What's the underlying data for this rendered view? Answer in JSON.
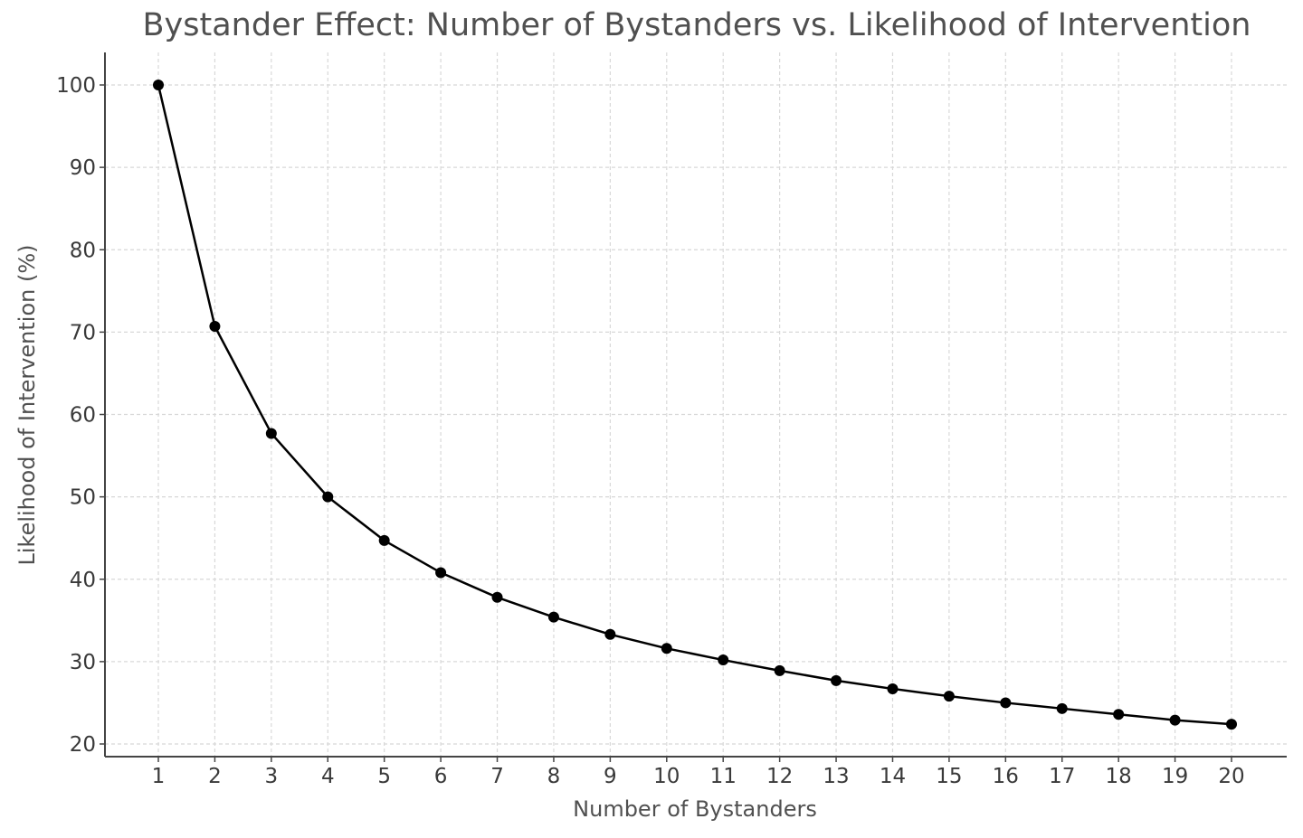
{
  "chart_data": {
    "type": "line",
    "title": "Bystander Effect: Number of Bystanders vs. Likelihood of Intervention",
    "xlabel": "Number of Bystanders",
    "ylabel": "Likelihood of Intervention (%)",
    "x": [
      1,
      2,
      3,
      4,
      5,
      6,
      7,
      8,
      9,
      10,
      11,
      12,
      13,
      14,
      15,
      16,
      17,
      18,
      19,
      20
    ],
    "series": [
      {
        "name": "Likelihood of Intervention",
        "values": [
          100.0,
          70.7,
          57.7,
          50.0,
          44.7,
          40.8,
          37.8,
          35.4,
          33.3,
          31.6,
          30.2,
          28.9,
          27.7,
          26.7,
          25.8,
          25.0,
          24.3,
          23.6,
          22.9,
          22.4
        ],
        "color": "#000000",
        "marker": "circle"
      }
    ],
    "xticks": [
      "1",
      "2",
      "3",
      "4",
      "5",
      "6",
      "7",
      "8",
      "9",
      "10",
      "11",
      "12",
      "13",
      "14",
      "15",
      "16",
      "17",
      "18",
      "19",
      "20"
    ],
    "yticks": [
      "20",
      "30",
      "40",
      "50",
      "60",
      "70",
      "80",
      "90",
      "100"
    ],
    "xlim": [
      0.05,
      21.0
    ],
    "ylim": [
      18.5,
      104
    ],
    "grid": true,
    "legend": null
  }
}
